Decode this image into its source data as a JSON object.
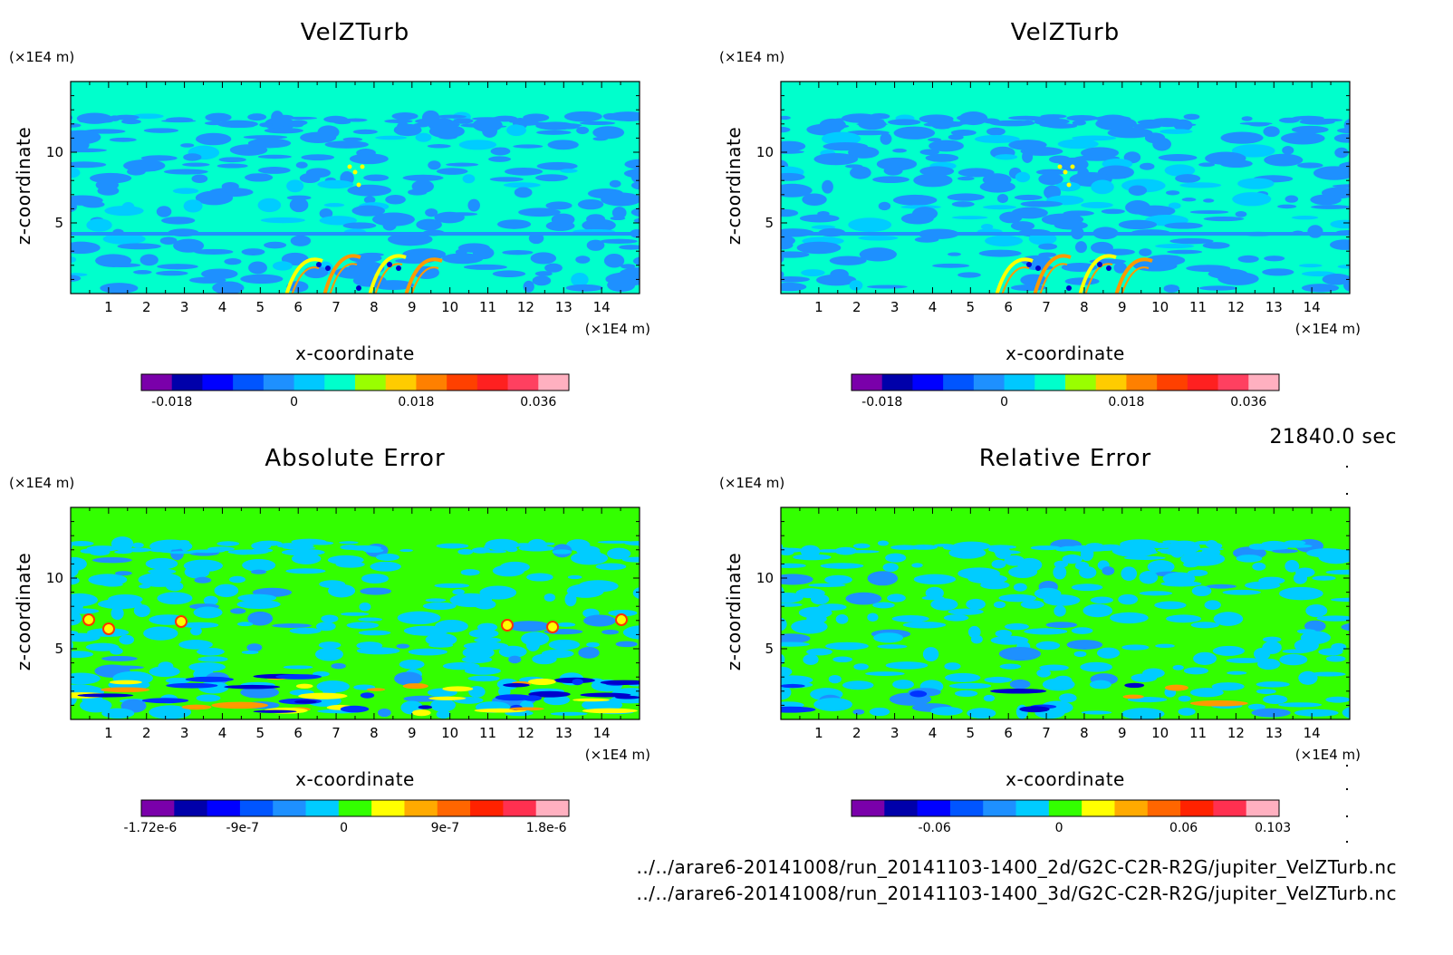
{
  "time_label": "21840.0 sec",
  "files": [
    "../../arare6-20141008/run_20141103-1400_2d/G2C-C2R-R2G/jupiter_VelZTurb.nc",
    "../../arare6-20141008/run_20141103-1400_3d/G2C-C2R-R2G/jupiter_VelZTurb.nc"
  ],
  "colors": {
    "velz_bg": "#00ffcc",
    "velz_pattern": "#1e90ff",
    "velz_mid": "#00ccff",
    "err_bg": "#33ff00",
    "err_pattern": "#00ccff",
    "err_mid": "#1e90ff",
    "warm": [
      "#ffff00",
      "#ff9900",
      "#ff3300",
      "#ff0066"
    ],
    "cool": [
      "#0000cc",
      "#0033ff"
    ]
  },
  "chart_data": [
    {
      "type": "heatmap",
      "title": "VelZTurb",
      "xlabel": "x-coordinate",
      "ylabel": "z-coordinate",
      "x_unit": "(×1E4 m)",
      "y_unit": "(×1E4 m)",
      "x_ticks": [
        "1",
        "2",
        "3",
        "4",
        "5",
        "6",
        "7",
        "8",
        "9",
        "10",
        "11",
        "12",
        "13",
        "14"
      ],
      "y_ticks": [
        "5",
        "10"
      ],
      "xlim": [
        0,
        15
      ],
      "ylim": [
        0,
        15
      ],
      "colorbar": {
        "labels": [
          "-0.018",
          "0",
          "0.018",
          "0.036"
        ],
        "label_values": [
          -0.018,
          0,
          0.018,
          0.036
        ],
        "range": [
          -0.0225,
          0.0405
        ],
        "colors": [
          "#7a00aa",
          "#0000aa",
          "#0000ff",
          "#0055ff",
          "#1e90ff",
          "#00c8ff",
          "#00ffcc",
          "#99ff00",
          "#ffcc00",
          "#ff8000",
          "#ff4000",
          "#ff2020",
          "#ff4060",
          "#ffb0c0"
        ]
      }
    },
    {
      "type": "heatmap",
      "title": "VelZTurb",
      "xlabel": "x-coordinate",
      "ylabel": "z-coordinate",
      "x_unit": "(×1E4 m)",
      "y_unit": "(×1E4 m)",
      "x_ticks": [
        "1",
        "2",
        "3",
        "4",
        "5",
        "6",
        "7",
        "8",
        "9",
        "10",
        "11",
        "12",
        "13",
        "14"
      ],
      "y_ticks": [
        "5",
        "10"
      ],
      "xlim": [
        0,
        15
      ],
      "ylim": [
        0,
        15
      ],
      "colorbar": {
        "labels": [
          "-0.018",
          "0",
          "0.018",
          "0.036"
        ],
        "label_values": [
          -0.018,
          0,
          0.018,
          0.036
        ],
        "range": [
          -0.0225,
          0.0405
        ],
        "colors": [
          "#7a00aa",
          "#0000aa",
          "#0000ff",
          "#0055ff",
          "#1e90ff",
          "#00c8ff",
          "#00ffcc",
          "#99ff00",
          "#ffcc00",
          "#ff8000",
          "#ff4000",
          "#ff2020",
          "#ff4060",
          "#ffb0c0"
        ]
      }
    },
    {
      "type": "heatmap",
      "title": "Absolute Error",
      "xlabel": "x-coordinate",
      "ylabel": "z-coordinate",
      "x_unit": "(×1E4 m)",
      "y_unit": "(×1E4 m)",
      "x_ticks": [
        "1",
        "2",
        "3",
        "4",
        "5",
        "6",
        "7",
        "8",
        "9",
        "10",
        "11",
        "12",
        "13",
        "14"
      ],
      "y_ticks": [
        "5",
        "10"
      ],
      "xlim": [
        0,
        15
      ],
      "ylim": [
        0,
        15
      ],
      "colorbar": {
        "labels": [
          "-1.72e-6",
          "-9e-7",
          "0",
          "9e-7",
          "1.8e-6"
        ],
        "label_values": [
          -1.72e-06,
          -9e-07,
          0,
          9e-07,
          1.8e-06
        ],
        "range": [
          -1.8e-06,
          2e-06
        ],
        "colors": [
          "#7a00aa",
          "#0000aa",
          "#0000ff",
          "#0055ff",
          "#1e90ff",
          "#00ccff",
          "#33ff00",
          "#ffff00",
          "#ffaa00",
          "#ff6600",
          "#ff2200",
          "#ff3050",
          "#ffb0c0"
        ]
      }
    },
    {
      "type": "heatmap",
      "title": "Relative Error",
      "xlabel": "x-coordinate",
      "ylabel": "z-coordinate",
      "x_unit": "(×1E4 m)",
      "y_unit": "(×1E4 m)",
      "x_ticks": [
        "1",
        "2",
        "3",
        "4",
        "5",
        "6",
        "7",
        "8",
        "9",
        "10",
        "11",
        "12",
        "13",
        "14"
      ],
      "y_ticks": [
        "5",
        "10"
      ],
      "xlim": [
        0,
        15
      ],
      "ylim": [
        0,
        15
      ],
      "colorbar": {
        "labels": [
          "-0.06",
          "0",
          "0.06",
          "0.103"
        ],
        "label_values": [
          -0.06,
          0,
          0.06,
          0.103
        ],
        "range": [
          -0.1,
          0.106
        ],
        "colors": [
          "#7a00aa",
          "#0000aa",
          "#0000ff",
          "#0055ff",
          "#1e90ff",
          "#00ccff",
          "#33ff00",
          "#ffff00",
          "#ffaa00",
          "#ff6600",
          "#ff2200",
          "#ff3050",
          "#ffb0c0"
        ]
      }
    }
  ]
}
